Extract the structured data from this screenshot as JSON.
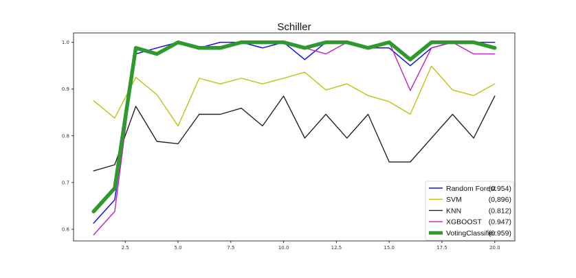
{
  "chart_data": {
    "type": "line",
    "title": "Schiller",
    "xlabel": "",
    "ylabel": "",
    "xlim": [
      0.05,
      20.95
    ],
    "ylim": [
      0.575,
      1.02
    ],
    "xticks": [
      2.5,
      5.0,
      7.5,
      10.0,
      12.5,
      15.0,
      17.5,
      20.0
    ],
    "xtick_labels": [
      "2.5",
      "5.0",
      "7.5",
      "10.0",
      "12.5",
      "15.0",
      "17.5",
      "20.0"
    ],
    "yticks": [
      0.6,
      0.7,
      0.8,
      0.9,
      1.0
    ],
    "ytick_labels": [
      "0.6",
      "0.7",
      "0.8",
      "0.9",
      "1.0"
    ],
    "grid": false,
    "legend_position": "bottom-right",
    "x": [
      1,
      2,
      3,
      4,
      5,
      6,
      7,
      8,
      9,
      10,
      11,
      12,
      13,
      14,
      15,
      16,
      17,
      18,
      19,
      20
    ],
    "series": [
      {
        "name": "Random Forest",
        "score": "(0.954)",
        "color": "#1010e0",
        "width": 1.5,
        "values": [
          0.613,
          0.663,
          0.975,
          0.988,
          1.0,
          0.988,
          1.0,
          1.0,
          0.988,
          1.0,
          0.963,
          1.0,
          1.0,
          0.988,
          0.988,
          0.95,
          0.988,
          1.0,
          1.0,
          1.0
        ]
      },
      {
        "name": "SVM",
        "score": "(0,896)",
        "color": "#c0c010",
        "width": 1.4,
        "values": [
          0.875,
          0.838,
          0.925,
          0.888,
          0.821,
          0.923,
          0.911,
          0.923,
          0.911,
          0.923,
          0.936,
          0.898,
          0.911,
          0.886,
          0.873,
          0.846,
          0.949,
          0.898,
          0.886,
          0.911
        ]
      },
      {
        "name": "KNN",
        "score": "(0.812)",
        "color": "#222222",
        "width": 1.4,
        "values": [
          0.725,
          0.738,
          0.863,
          0.788,
          0.783,
          0.846,
          0.846,
          0.859,
          0.821,
          0.885,
          0.795,
          0.846,
          0.795,
          0.846,
          0.744,
          0.744,
          0.795,
          0.846,
          0.795,
          0.885
        ]
      },
      {
        "name": "XGBOOST",
        "score": "(0.947)",
        "color": "#c020c0",
        "width": 1.4,
        "values": [
          0.588,
          0.638,
          0.988,
          0.975,
          1.0,
          0.988,
          0.988,
          1.0,
          1.0,
          1.0,
          0.988,
          0.975,
          1.0,
          0.988,
          1.0,
          0.897,
          0.988,
          1.0,
          0.975,
          0.975
        ]
      },
      {
        "name": "VotingClassifier",
        "score": "(0.959)",
        "color": "#2e9a2e",
        "width": 5.5,
        "values": [
          0.638,
          0.688,
          0.988,
          0.975,
          1.0,
          0.988,
          0.988,
          1.0,
          1.0,
          1.0,
          0.988,
          1.0,
          1.0,
          0.988,
          1.0,
          0.963,
          1.0,
          1.0,
          1.0,
          0.988
        ]
      }
    ]
  }
}
